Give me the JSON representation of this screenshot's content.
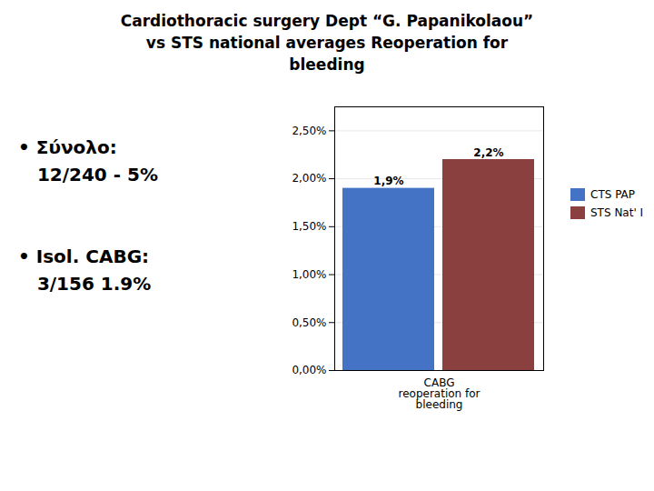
{
  "chart_data": {
    "type": "bar",
    "title": "Cardiothoracic surgery Dept “G. Papanikolaou”\nvs STS national averages Reoperation for\nbleeding",
    "annotations": [
      "• Σύνολο:\n   12/240 - 5%",
      "• Isol. CABG:\n   3/156 1.9%"
    ],
    "categories": [
      "CABG\nreoperation for\nbleeding"
    ],
    "series": [
      {
        "name": "CTS PAP",
        "color": "#4472C4",
        "values": [
          0.019
        ],
        "value_labels": [
          "1,9%"
        ]
      },
      {
        "name": "STS Nat' I",
        "color": "#8B4040",
        "values": [
          0.022
        ],
        "value_labels": [
          "2,2%"
        ]
      }
    ],
    "ylim": [
      0,
      0.0275
    ],
    "yticks": [
      {
        "value": 0.0,
        "label": "0,00%"
      },
      {
        "value": 0.005,
        "label": "0,50%"
      },
      {
        "value": 0.01,
        "label": "1,00%"
      },
      {
        "value": 0.015,
        "label": "1,50%"
      },
      {
        "value": 0.02,
        "label": "2,00%"
      },
      {
        "value": 0.025,
        "label": "2,50%"
      }
    ],
    "grid": true,
    "legend": "right",
    "data_labels": true
  }
}
